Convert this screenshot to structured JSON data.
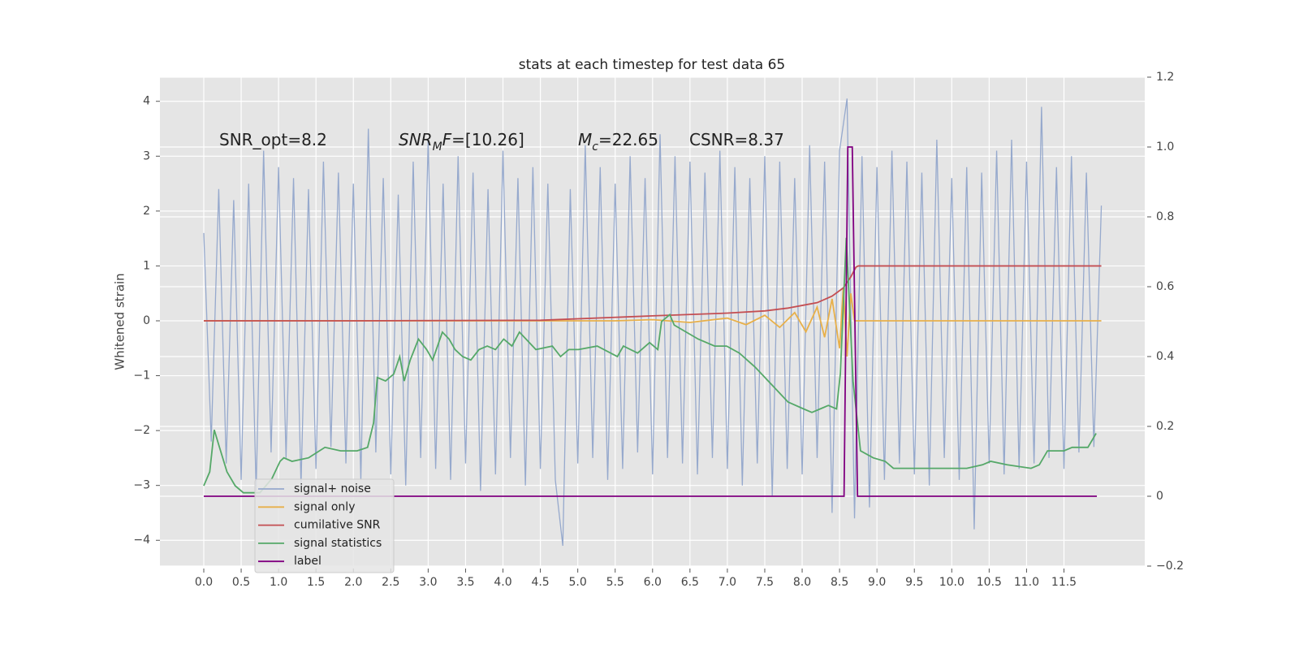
{
  "chart_data": {
    "type": "line",
    "title": "stats at each timestep for test data 65",
    "ylabel": "Whitened strain",
    "xlim": [
      -0.586,
      12.58
    ],
    "ylim": [
      -4.47,
      4.44
    ],
    "y2lim": [
      -0.2,
      1.2
    ],
    "xticks": [
      {
        "value": 0,
        "label": "0.0"
      },
      0.5,
      {
        "value": 1,
        "label": "1.0"
      },
      1.5,
      {
        "value": 2,
        "label": "2.0"
      },
      2.5,
      {
        "value": 3,
        "label": "3.0"
      },
      3.5,
      {
        "value": 4,
        "label": "4.0"
      },
      4.5,
      {
        "value": 5,
        "label": "5.0"
      },
      5.5,
      {
        "value": 6,
        "label": "6.0"
      },
      6.5,
      {
        "value": 7,
        "label": "7.0"
      },
      7.5,
      {
        "value": 8,
        "label": "8.0"
      },
      8.5,
      {
        "value": 9,
        "label": "9.0"
      },
      9.5,
      {
        "value": 10,
        "label": "10.0"
      },
      10.5,
      {
        "value": 11,
        "label": "11.0"
      },
      11.5
    ],
    "yticks": [
      {
        "value": -4,
        "label": "−4"
      },
      {
        "value": -3,
        "label": "−3"
      },
      {
        "value": -2,
        "label": "−2"
      },
      {
        "value": -1,
        "label": "−1"
      },
      0,
      1,
      2,
      3,
      4
    ],
    "y2ticks": [
      {
        "value": -0.2,
        "label": "−0.2"
      },
      0,
      0.2,
      0.4,
      0.6,
      0.8,
      {
        "value": 1,
        "label": "1.0"
      },
      1.2
    ],
    "grid": true,
    "legend": "lower left",
    "annotations": [
      [
        {
          "text": "SNR_opt=8.2"
        }
      ],
      [
        {
          "text": "SNR",
          "italic": true
        },
        {
          "text": "M",
          "italic": true,
          "sub": true
        },
        {
          "text": "F",
          "italic": true
        },
        {
          "text": "=[10.26]"
        }
      ],
      [
        {
          "text": "M",
          "italic": true
        },
        {
          "text": "c",
          "italic": true,
          "sub": true
        },
        {
          "text": "=22.65"
        }
      ],
      [
        {
          "text": "CSNR=8.37"
        }
      ]
    ],
    "series": [
      {
        "name": "signal+ noise",
        "color": "#96a9cd",
        "x": [
          0,
          0.1,
          0.2,
          0.3,
          0.4,
          0.5,
          0.6,
          0.7,
          0.8,
          0.9,
          1,
          1.1,
          1.2,
          1.3,
          1.4,
          1.5,
          1.6,
          1.7,
          1.8,
          1.9,
          2,
          2.1,
          2.2,
          2.3,
          2.4,
          2.5,
          2.6,
          2.7,
          2.8,
          2.9,
          3,
          3.1,
          3.2,
          3.3,
          3.4,
          3.5,
          3.6,
          3.7,
          3.8,
          3.9,
          4,
          4.1,
          4.2,
          4.3,
          4.4,
          4.5,
          4.6,
          4.7,
          4.8,
          4.9,
          5,
          5.1,
          5.2,
          5.3,
          5.4,
          5.5,
          5.6,
          5.7,
          5.8,
          5.9,
          6,
          6.1,
          6.2,
          6.3,
          6.4,
          6.5,
          6.6,
          6.7,
          6.8,
          6.9,
          7,
          7.1,
          7.2,
          7.3,
          7.4,
          7.5,
          7.6,
          7.7,
          7.8,
          7.9,
          8,
          8.1,
          8.2,
          8.3,
          8.4,
          8.5,
          8.6,
          8.7,
          8.8,
          8.9,
          9,
          9.1,
          9.2,
          9.3,
          9.4,
          9.5,
          9.6,
          9.7,
          9.8,
          9.9,
          10,
          10.1,
          10.2,
          10.3,
          10.4,
          10.5,
          10.6,
          10.7,
          10.8,
          10.9,
          11,
          11.1,
          11.2,
          11.3,
          11.4,
          11.5,
          11.6,
          11.7,
          11.8,
          11.9,
          12
        ],
        "values": [
          1.6,
          -2.2,
          2.4,
          -2.6,
          2.2,
          -2.9,
          2.5,
          -3.1,
          3.1,
          -2.4,
          2.8,
          -2.5,
          2.6,
          -3.0,
          2.4,
          -2.7,
          2.9,
          -2.3,
          2.7,
          -2.6,
          2.5,
          -2.9,
          3.5,
          -2.4,
          2.6,
          -2.8,
          2.3,
          -3.0,
          2.9,
          -2.5,
          3.3,
          -2.7,
          2.5,
          -2.9,
          3.0,
          -2.6,
          2.7,
          -3.1,
          2.4,
          -2.8,
          3.1,
          -2.5,
          2.6,
          -3.0,
          2.8,
          -2.7,
          2.5,
          -2.9,
          -4.1,
          2.4,
          -2.6,
          3.2,
          -2.5,
          2.8,
          -2.9,
          2.5,
          -2.7,
          3.0,
          -2.4,
          2.6,
          -2.8,
          3.4,
          -2.5,
          3.0,
          -2.6,
          2.9,
          -2.8,
          2.7,
          -2.5,
          3.1,
          -2.7,
          2.8,
          -3.0,
          2.6,
          -2.6,
          3.0,
          -3.2,
          2.9,
          -2.7,
          2.6,
          -2.8,
          3.2,
          -2.5,
          2.9,
          -3.5,
          3.1,
          4.05,
          -3.6,
          3.0,
          -3.4,
          2.8,
          -2.9,
          3.1,
          -2.6,
          2.9,
          -2.8,
          2.7,
          -3.0,
          3.3,
          -2.5,
          2.6,
          -2.9,
          2.8,
          -3.8,
          2.7,
          -2.6,
          3.1,
          -2.8,
          3.3,
          -2.7,
          2.9,
          -2.6,
          3.9,
          -2.5,
          2.8,
          -2.7,
          3.0,
          -2.4,
          2.7,
          -2.3,
          2.1
        ]
      },
      {
        "name": "signal only",
        "color": "#e8b04a",
        "x": [
          0,
          5.5,
          6,
          6.5,
          7,
          7.25,
          7.5,
          7.7,
          7.9,
          8.05,
          8.2,
          8.3,
          8.4,
          8.5,
          8.55,
          8.6,
          8.65,
          8.7,
          9,
          12
        ],
        "values": [
          0,
          0,
          0.02,
          -0.03,
          0.05,
          -0.07,
          0.1,
          -0.12,
          0.15,
          -0.2,
          0.25,
          -0.3,
          0.4,
          -0.5,
          0.6,
          -0.65,
          0.5,
          0,
          0,
          0
        ]
      },
      {
        "name": "cumilative SNR",
        "color": "#c44e52",
        "x": [
          0,
          2,
          4.5,
          6,
          7,
          7.5,
          7.8,
          8,
          8.2,
          8.4,
          8.55,
          8.65,
          8.72,
          8.75,
          12
        ],
        "values": [
          0,
          0,
          0.01,
          0.09,
          0.14,
          0.18,
          0.23,
          0.28,
          0.33,
          0.45,
          0.6,
          0.8,
          0.98,
          1.0,
          1.0
        ]
      },
      {
        "name": "signal statistics",
        "color": "#55a868",
        "axis": "y2",
        "x": [
          0,
          0.08,
          0.14,
          0.21,
          0.31,
          0.42,
          0.53,
          0.75,
          0.91,
          1.02,
          1.07,
          1.18,
          1.4,
          1.62,
          1.83,
          2.05,
          2.19,
          2.27,
          2.32,
          2.43,
          2.54,
          2.62,
          2.68,
          2.76,
          2.87,
          2.98,
          3.06,
          3.19,
          3.28,
          3.36,
          3.46,
          3.57,
          3.68,
          3.79,
          3.9,
          4.01,
          4.12,
          4.22,
          4.44,
          4.66,
          4.77,
          4.88,
          5.01,
          5.26,
          5.53,
          5.61,
          5.8,
          5.96,
          6.07,
          6.12,
          6.23,
          6.29,
          6.45,
          6.61,
          6.83,
          6.99,
          7.16,
          7.37,
          7.59,
          7.81,
          8.02,
          8.13,
          8.24,
          8.35,
          8.46,
          8.51,
          8.59,
          8.68,
          8.78,
          8.95,
          9.11,
          9.22,
          9.44,
          9.76,
          9.98,
          10.2,
          10.41,
          10.52,
          10.74,
          11.06,
          11.17,
          11.28,
          11.39,
          11.5,
          11.61,
          11.82,
          11.93
        ],
        "values": [
          0.03,
          0.07,
          0.19,
          0.14,
          0.07,
          0.03,
          0.01,
          0.01,
          0.05,
          0.1,
          0.11,
          0.1,
          0.11,
          0.14,
          0.13,
          0.13,
          0.14,
          0.21,
          0.34,
          0.33,
          0.35,
          0.4,
          0.33,
          0.39,
          0.45,
          0.42,
          0.39,
          0.47,
          0.45,
          0.42,
          0.4,
          0.39,
          0.42,
          0.43,
          0.42,
          0.45,
          0.43,
          0.47,
          0.42,
          0.43,
          0.4,
          0.42,
          0.42,
          0.43,
          0.4,
          0.43,
          0.41,
          0.44,
          0.42,
          0.5,
          0.52,
          0.49,
          0.47,
          0.45,
          0.43,
          0.43,
          0.41,
          0.37,
          0.32,
          0.27,
          0.25,
          0.24,
          0.25,
          0.26,
          0.25,
          0.35,
          0.74,
          0.33,
          0.13,
          0.11,
          0.1,
          0.08,
          0.08,
          0.08,
          0.08,
          0.08,
          0.09,
          0.1,
          0.09,
          0.08,
          0.09,
          0.13,
          0.13,
          0.13,
          0.14,
          0.14,
          0.18
        ]
      },
      {
        "name": "label",
        "color": "#800080",
        "axis": "y2",
        "x": [
          0,
          8.56,
          8.61,
          8.67,
          8.74,
          11.94
        ],
        "values": [
          0,
          0,
          1,
          1,
          0,
          0
        ]
      }
    ]
  }
}
